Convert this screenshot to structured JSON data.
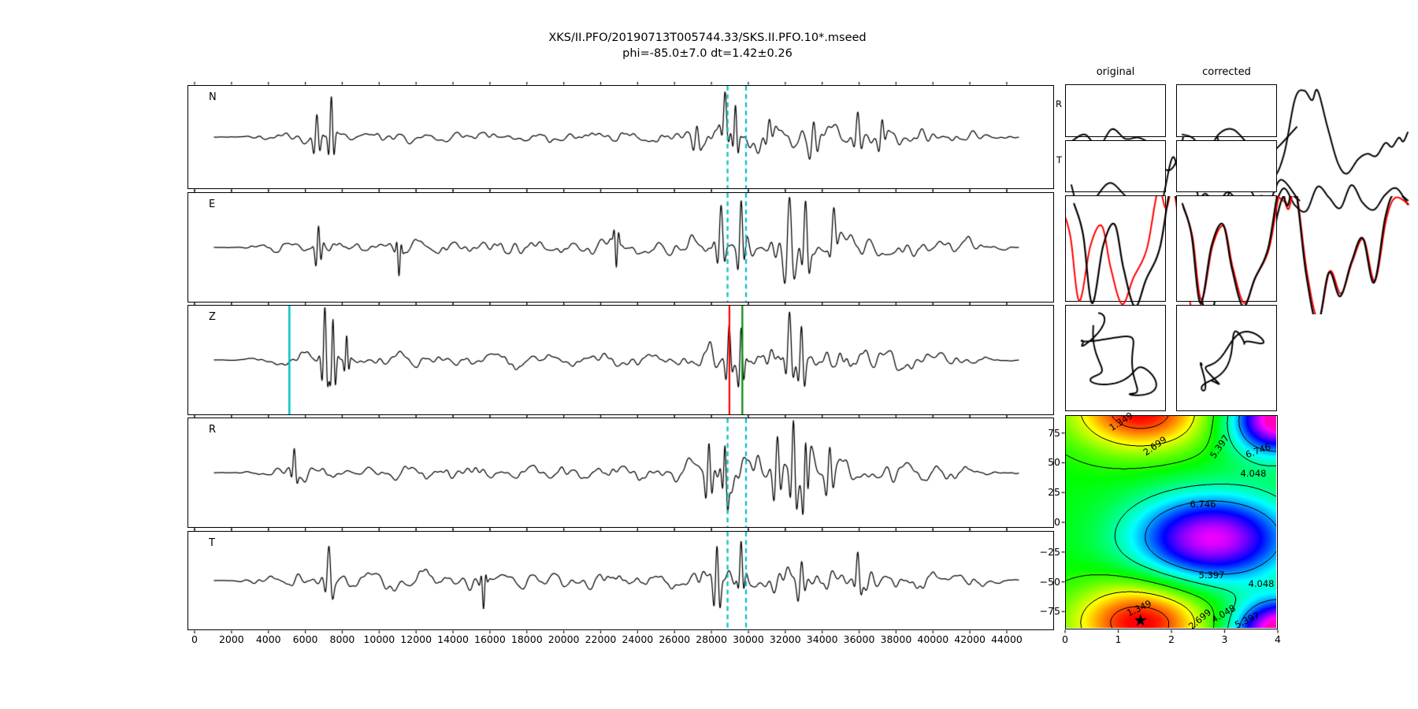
{
  "figure_title": "XKS/II.PFO/20190713T005744.33/SKS.II.PFO.10*.mseed",
  "figure_subtitle": "phi=-85.0±7.0 dt=1.42±0.26",
  "result": {
    "phi": "-85.0",
    "phi_err": "7.0",
    "dt": "1.42",
    "dt_err": "0.26"
  },
  "colors": {
    "trace": "#000000",
    "window_line": "#00bfc1",
    "z_pick_line": "#00bfc1",
    "z_start_line": "#ff0000",
    "z_end_line": "#008a00",
    "overlay_red": "#ff0000",
    "contour_line": "#000000",
    "background": "#ffffff"
  },
  "star_glyph": "★",
  "chart_data": [
    {
      "type": "line",
      "id": "seismogram-panels",
      "panels": [
        "N",
        "E",
        "Z",
        "R",
        "T"
      ],
      "xlim": [
        -380,
        46550
      ],
      "xticks": [
        0,
        2000,
        4000,
        6000,
        8000,
        10000,
        12000,
        14000,
        16000,
        18000,
        20000,
        22000,
        24000,
        26000,
        28000,
        30000,
        32000,
        34000,
        36000,
        38000,
        40000,
        42000,
        44000
      ],
      "ylabel": "",
      "analysis_window": {
        "start": 28900,
        "end": 29900,
        "style": "dashed",
        "color": "#00bfc1",
        "applies_to": [
          "N",
          "E",
          "R",
          "T"
        ]
      },
      "z_panel_markers": [
        {
          "x": 5160,
          "color": "#00bfc1",
          "name": "pick"
        },
        {
          "x": 29000,
          "color": "#ff0000",
          "name": "window-start"
        },
        {
          "x": 29700,
          "color": "#008a00",
          "name": "window-end"
        }
      ],
      "waveform_synthesis": {
        "note": "seismogram traces approximated as enveloped band-limited noise with wavelet bursts",
        "envelope": [
          [
            0,
            0
          ],
          [
            0.02,
            0.01
          ],
          [
            0.04,
            0.05
          ],
          [
            0.07,
            0.16
          ],
          [
            0.1,
            0.26
          ],
          [
            0.13,
            0.32
          ],
          [
            0.16,
            0.27
          ],
          [
            0.2,
            0.26
          ],
          [
            0.25,
            0.26
          ],
          [
            0.3,
            0.27
          ],
          [
            0.35,
            0.25
          ],
          [
            0.4,
            0.26
          ],
          [
            0.45,
            0.24
          ],
          [
            0.5,
            0.26
          ],
          [
            0.55,
            0.28
          ],
          [
            0.58,
            0.33
          ],
          [
            0.61,
            0.45
          ],
          [
            0.64,
            0.62
          ],
          [
            0.67,
            0.6
          ],
          [
            0.7,
            0.72
          ],
          [
            0.73,
            0.65
          ],
          [
            0.76,
            0.55
          ],
          [
            0.79,
            0.58
          ],
          [
            0.82,
            0.48
          ],
          [
            0.85,
            0.4
          ],
          [
            0.88,
            0.38
          ],
          [
            0.91,
            0.32
          ],
          [
            0.94,
            0.25
          ],
          [
            0.965,
            0.14
          ],
          [
            0.98,
            0.06
          ],
          [
            1,
            0.03
          ]
        ],
        "spikes": {
          "N": [
            [
              0.128,
              0.0035,
              0.9
            ],
            [
              0.146,
              0.003,
              1.25
            ],
            [
              0.6,
              0.004,
              0.5
            ],
            [
              0.635,
              0.0035,
              0.9
            ],
            [
              0.648,
              0.003,
              1.0
            ],
            [
              0.69,
              0.004,
              0.55
            ],
            [
              0.745,
              0.0045,
              0.75
            ],
            [
              0.8,
              0.004,
              0.7
            ],
            [
              0.83,
              0.0035,
              0.5
            ]
          ],
          "E": [
            [
              0.13,
              0.003,
              0.6
            ],
            [
              0.23,
              0.0025,
              -0.45
            ],
            [
              0.5,
              0.0025,
              -0.5
            ],
            [
              0.63,
              0.004,
              0.8
            ],
            [
              0.655,
              0.0035,
              0.9
            ],
            [
              0.715,
              0.005,
              1.05
            ],
            [
              0.735,
              0.004,
              1.0
            ],
            [
              0.77,
              0.004,
              0.6
            ]
          ],
          "Z": [
            [
              0.138,
              0.0032,
              1.35
            ],
            [
              0.148,
              0.0028,
              1.2
            ],
            [
              0.165,
              0.0025,
              0.6
            ],
            [
              0.64,
              0.0035,
              0.9
            ],
            [
              0.655,
              0.003,
              1.0
            ],
            [
              0.715,
              0.004,
              1.15
            ],
            [
              0.73,
              0.0035,
              1.0
            ]
          ],
          "R": [
            [
              0.1,
              0.003,
              0.45
            ],
            [
              0.615,
              0.0035,
              0.95
            ],
            [
              0.635,
              0.003,
              1.0
            ],
            [
              0.7,
              0.004,
              1.05
            ],
            [
              0.72,
              0.0035,
              1.25
            ],
            [
              0.735,
              0.003,
              1.1
            ],
            [
              0.765,
              0.004,
              0.8
            ]
          ],
          "T": [
            [
              0.143,
              0.004,
              0.75
            ],
            [
              0.335,
              0.0025,
              -0.5
            ],
            [
              0.625,
              0.0035,
              1.0
            ],
            [
              0.655,
              0.003,
              0.7
            ],
            [
              0.73,
              0.004,
              0.6
            ],
            [
              0.8,
              0.0035,
              0.5
            ]
          ]
        },
        "seeds": {
          "N": 11,
          "E": 22,
          "Z": 33,
          "R": 44,
          "T": 55
        }
      }
    },
    {
      "type": "line",
      "id": "correction-comparison",
      "columns": [
        "original",
        "corrected"
      ],
      "rows": [
        "R",
        "T",
        "overlay",
        "particle-motion"
      ],
      "curves": {
        "R_original": [
          [
            0,
            0.05
          ],
          [
            0.06,
            0.18
          ],
          [
            0.12,
            -0.05
          ],
          [
            0.18,
            0.28
          ],
          [
            0.24,
            0.1
          ],
          [
            0.3,
            0.12
          ],
          [
            0.36,
            -0.05
          ],
          [
            0.42,
            -0.48
          ],
          [
            0.47,
            -0.28
          ],
          [
            0.52,
            0.55
          ],
          [
            0.56,
            1.0
          ],
          [
            0.6,
            0.85
          ],
          [
            0.65,
            0.1
          ],
          [
            0.7,
            -0.45
          ],
          [
            0.75,
            -0.68
          ],
          [
            0.81,
            -0.55
          ],
          [
            0.87,
            -0.25
          ],
          [
            0.93,
            0.0
          ],
          [
            1,
            0.32
          ]
        ],
        "R_corrected": [
          [
            0,
            0.18
          ],
          [
            0.05,
            0.1
          ],
          [
            0.1,
            -0.22
          ],
          [
            0.16,
            0.18
          ],
          [
            0.22,
            0.28
          ],
          [
            0.28,
            0.05
          ],
          [
            0.34,
            -0.3
          ],
          [
            0.4,
            -0.62
          ],
          [
            0.45,
            -0.2
          ],
          [
            0.5,
            0.85
          ],
          [
            0.54,
            1.0
          ],
          [
            0.575,
            0.82
          ],
          [
            0.6,
            1.0
          ],
          [
            0.645,
            0.3
          ],
          [
            0.69,
            -0.35
          ],
          [
            0.73,
            -0.55
          ],
          [
            0.78,
            -0.28
          ],
          [
            0.82,
            -0.18
          ],
          [
            0.86,
            -0.22
          ],
          [
            0.9,
            0.02
          ],
          [
            0.93,
            -0.05
          ],
          [
            0.96,
            0.12
          ],
          [
            0.98,
            0.05
          ],
          [
            1,
            0.22
          ]
        ],
        "T_original": [
          [
            0,
            0.28
          ],
          [
            0.05,
            -0.38
          ],
          [
            0.11,
            0.05
          ],
          [
            0.17,
            0.32
          ],
          [
            0.23,
            0.12
          ],
          [
            0.29,
            -0.18
          ],
          [
            0.35,
            -0.28
          ],
          [
            0.4,
            -0.05
          ],
          [
            0.45,
            0.8
          ],
          [
            0.49,
            0.3
          ],
          [
            0.53,
            0.55
          ],
          [
            0.58,
            -0.25
          ],
          [
            0.62,
            -0.95
          ],
          [
            0.68,
            -0.12
          ],
          [
            0.73,
            0.42
          ],
          [
            0.78,
            0.3
          ],
          [
            0.83,
            -0.05
          ],
          [
            0.88,
            -0.02
          ],
          [
            0.93,
            0.38
          ],
          [
            1,
            0.05
          ]
        ],
        "T_corrected": [
          [
            0,
            0.0
          ],
          [
            0.05,
            -0.15
          ],
          [
            0.1,
            0.12
          ],
          [
            0.15,
            -0.1
          ],
          [
            0.2,
            0.15
          ],
          [
            0.25,
            -0.05
          ],
          [
            0.3,
            -0.18
          ],
          [
            0.35,
            0.08
          ],
          [
            0.4,
            -0.12
          ],
          [
            0.45,
            0.22
          ],
          [
            0.5,
            -0.1
          ],
          [
            0.55,
            -0.2
          ],
          [
            0.6,
            0.25
          ],
          [
            0.65,
            0.05
          ],
          [
            0.7,
            -0.15
          ],
          [
            0.75,
            0.28
          ],
          [
            0.8,
            -0.05
          ],
          [
            0.85,
            -0.18
          ],
          [
            0.9,
            0.1
          ],
          [
            0.95,
            0.22
          ],
          [
            1,
            -0.08
          ]
        ],
        "overlay_base": [
          [
            0,
            0.75
          ],
          [
            0.04,
            0.3
          ],
          [
            0.08,
            -0.7
          ],
          [
            0.13,
            0.15
          ],
          [
            0.18,
            0.45
          ],
          [
            0.22,
            -0.2
          ],
          [
            0.27,
            -0.75
          ],
          [
            0.32,
            -0.35
          ],
          [
            0.38,
            0.1
          ],
          [
            0.43,
            1.0
          ],
          [
            0.465,
            0.72
          ],
          [
            0.5,
            1.0
          ],
          [
            0.55,
            -0.3
          ],
          [
            0.6,
            -1.0
          ],
          [
            0.65,
            -0.25
          ],
          [
            0.7,
            -0.6
          ],
          [
            0.75,
            -0.1
          ],
          [
            0.8,
            0.25
          ],
          [
            0.85,
            -0.4
          ],
          [
            0.9,
            0.55
          ],
          [
            0.94,
            0.9
          ],
          [
            1,
            0.8
          ]
        ],
        "overlay_original": {
          "black_shift": 0.012,
          "red_shift": -0.045,
          "red_scale": 0.95
        },
        "overlay_corrected": {
          "black_shift": 0.0,
          "red_shift": 0.004,
          "red_scale": 0.93
        },
        "motion_original": {
          "x": [
            [
              0.75,
              1.1,
              4.0
            ],
            [
              0.3,
              3.3,
              0.5
            ],
            [
              0.12,
              7,
              0
            ]
          ],
          "y": [
            [
              0.7,
              0.9,
              1.2
            ],
            [
              0.35,
              2.8,
              2.2
            ],
            [
              0.1,
              6,
              1
            ]
          ]
        },
        "motion_corrected": {
          "d": [
            [
              0.85,
              1.05,
              4.2
            ],
            [
              0.25,
              3.2,
              0.8
            ]
          ],
          "n": [
            [
              0.22,
              2.6,
              1.5
            ],
            [
              0.12,
              6,
              0.3
            ]
          ],
          "angle_deg": 40
        }
      }
    },
    {
      "type": "heatmap",
      "id": "error-surface",
      "xlim": [
        0,
        4
      ],
      "ylim": [
        -90,
        90
      ],
      "xticks": [
        "0",
        "1",
        "2",
        "3",
        "4"
      ],
      "xtick_values": [
        0,
        1,
        2,
        3,
        4
      ],
      "ytick_labels": [
        "75",
        "50",
        "25",
        "0",
        "−25",
        "−50",
        "−75"
      ],
      "ytick_values": [
        75,
        50,
        25,
        0,
        -25,
        -50,
        -75
      ],
      "contour_levels": [
        1.349,
        2.699,
        4.048,
        5.397,
        6.746
      ],
      "minimum": {
        "dt": 1.42,
        "phi": -85.0,
        "marker": "star"
      },
      "colormap": "rainbow (red=min ... magenta=max)",
      "surface_model": {
        "base": 4.35,
        "bumps": [
          {
            "dt": 1.42,
            "phi": -85,
            "amp": -3.7,
            "sdt": 0.9,
            "sphi": 24
          },
          {
            "dt": 2.78,
            "phi": -14,
            "amp": 5.1,
            "sdt": 1.05,
            "sphi": 26
          },
          {
            "dt": 3.95,
            "phi": 82,
            "amp": 3.6,
            "sdt": 0.6,
            "sphi": 20
          },
          {
            "dt": 4.35,
            "phi": -88,
            "amp": 3.4,
            "sdt": 0.65,
            "sphi": 16
          }
        ],
        "norm": [
          0.5,
          10.0
        ]
      },
      "contour_labels": [
        {
          "v": "1.349",
          "x": 70,
          "y": 7,
          "r": -33
        },
        {
          "v": "2.699",
          "x": 113,
          "y": 38,
          "r": -35
        },
        {
          "v": "5.397",
          "x": 195,
          "y": 39,
          "r": -55
        },
        {
          "v": "6.746",
          "x": 244,
          "y": 44,
          "r": -20
        },
        {
          "v": "4.048",
          "x": 238,
          "y": 73,
          "r": 0
        },
        {
          "v": "6.746",
          "x": 174,
          "y": 112,
          "r": 0
        },
        {
          "v": "5.397",
          "x": 185,
          "y": 202,
          "r": 0
        },
        {
          "v": "4.048",
          "x": 248,
          "y": 213,
          "r": 0
        },
        {
          "v": "1.349",
          "x": 93,
          "y": 244,
          "r": -25
        },
        {
          "v": "2.699",
          "x": 170,
          "y": 258,
          "r": -40
        },
        {
          "v": "4.048",
          "x": 200,
          "y": 251,
          "r": -30
        },
        {
          "v": "5.397",
          "x": 230,
          "y": 259,
          "r": -25
        }
      ]
    }
  ]
}
